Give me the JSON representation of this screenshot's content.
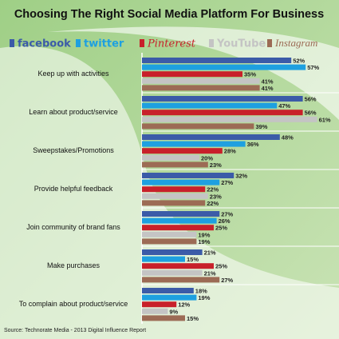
{
  "chart_data": {
    "type": "bar",
    "orientation": "horizontal",
    "title": "Choosing The Right Social Media Platform For Business",
    "categories": [
      "Keep up with activities",
      "Learn about product/service",
      "Sweepstakes/Promotions",
      "Provide helpful feedback",
      "Join community of brand fans",
      "Make purchases",
      "To complain about product/service"
    ],
    "series": [
      {
        "name": "facebook",
        "color": "#3b5ba8",
        "values": [
          52,
          56,
          48,
          32,
          27,
          21,
          18
        ],
        "value_labels": [
          "52%",
          "56%",
          "48%",
          "32%",
          "27%",
          "21%",
          "18%"
        ]
      },
      {
        "name": "twitter",
        "color": "#1ea0e0",
        "values": [
          57,
          47,
          36,
          27,
          26,
          15,
          19
        ],
        "value_labels": [
          "57%",
          "47%",
          "36%",
          "27%",
          "26%",
          "15%",
          "19%"
        ]
      },
      {
        "name": "Pinterest",
        "color": "#c8202a",
        "values": [
          35,
          56,
          28,
          22,
          25,
          25,
          12
        ],
        "value_labels": [
          "35%",
          "56%",
          "28%",
          "22%",
          "25%",
          "25%",
          "12%"
        ]
      },
      {
        "name": "YouTube",
        "color": "#c4c4c4",
        "values": [
          41,
          61,
          20,
          23,
          19,
          21,
          9
        ],
        "value_labels": [
          "41%",
          "61%",
          "20%",
          "23%",
          "19%",
          "21%",
          "9%"
        ]
      },
      {
        "name": "Instagram",
        "color": "#9c6b55",
        "values": [
          41,
          39,
          23,
          22,
          19,
          27,
          15
        ],
        "value_labels": [
          "41%",
          "39%",
          "23%",
          "22%",
          "19%",
          "27%",
          "15%"
        ]
      }
    ],
    "source": "Source: Technorate Media - 2013 Digital Influence Report"
  }
}
